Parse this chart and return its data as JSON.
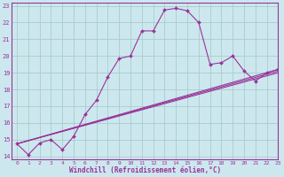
{
  "bg_color": "#cce8ee",
  "line_color": "#993399",
  "grid_color": "#aacccc",
  "xlabel": "Windchill (Refroidissement éolien,°C)",
  "xlim": [
    -0.5,
    23
  ],
  "ylim": [
    13.8,
    23.2
  ],
  "yticks": [
    14,
    15,
    16,
    17,
    18,
    19,
    20,
    21,
    22,
    23
  ],
  "xticks": [
    0,
    1,
    2,
    3,
    4,
    5,
    6,
    7,
    8,
    9,
    10,
    11,
    12,
    13,
    14,
    15,
    16,
    17,
    18,
    19,
    20,
    21,
    22,
    23
  ],
  "main_line": {
    "x": [
      0,
      1,
      2,
      3,
      4,
      5,
      6,
      7,
      8,
      9,
      10,
      11,
      12,
      13,
      14,
      15,
      16,
      17,
      18,
      19,
      20,
      21,
      22,
      23
    ],
    "y": [
      14.75,
      14.1,
      14.8,
      15.0,
      14.4,
      15.2,
      16.5,
      17.35,
      18.75,
      19.85,
      20.0,
      21.5,
      21.5,
      22.75,
      22.85,
      22.7,
      22.0,
      19.5,
      19.6,
      20.0,
      19.1,
      18.5,
      19.0,
      19.2
    ]
  },
  "straight_lines": [
    {
      "x": [
        0,
        23
      ],
      "y": [
        14.75,
        19.2
      ]
    },
    {
      "x": [
        0,
        23
      ],
      "y": [
        14.75,
        19.1
      ]
    },
    {
      "x": [
        0,
        23
      ],
      "y": [
        14.75,
        19.0
      ]
    }
  ]
}
